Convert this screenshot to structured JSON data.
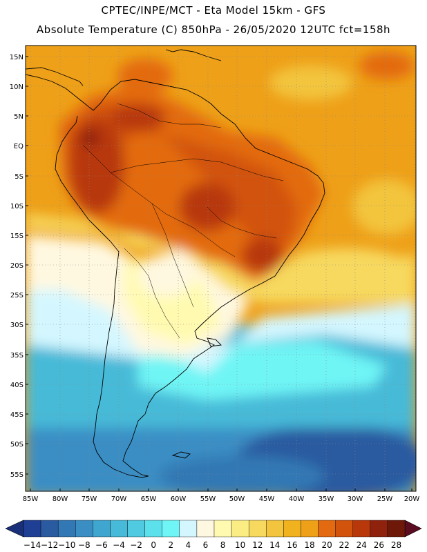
{
  "title": {
    "line1": "CPTEC/INPE/MCT -  Eta Model 15km - GFS",
    "line2": "Absolute Temperature (C) 850hPa - 26/05/2020 12UTC fct=158h"
  },
  "map": {
    "variable": "Absolute Temperature",
    "unit": "C",
    "level": "850hPa",
    "lat_labels": [
      "15N",
      "10N",
      "5N",
      "EQ",
      "5S",
      "10S",
      "15S",
      "20S",
      "25S",
      "30S",
      "35S",
      "40S",
      "45S",
      "50S",
      "55S"
    ],
    "lon_labels": [
      "85W",
      "80W",
      "75W",
      "70W",
      "65W",
      "60W",
      "55W",
      "50W",
      "45W",
      "40W",
      "35W",
      "30W",
      "25W",
      "20W"
    ]
  },
  "colorbar": {
    "labels": [
      "-14",
      "-12",
      "-10",
      "-8",
      "-6",
      "-4",
      "-2",
      "0",
      "2",
      "4",
      "6",
      "8",
      "10",
      "12",
      "14",
      "16",
      "18",
      "20",
      "22",
      "24",
      "26",
      "28"
    ],
    "colors": [
      "#1f3f94",
      "#2a5aa0",
      "#3178b4",
      "#3a8ec4",
      "#3fa6cf",
      "#46bad8",
      "#4fcae0",
      "#5ce0ec",
      "#6ff5f5",
      "#d4f7ff",
      "#fff8e0",
      "#fffab0",
      "#fbec83",
      "#f7d95f",
      "#f3c53e",
      "#f0b21f",
      "#eea018",
      "#e36a10",
      "#d2530c",
      "#b8380c",
      "#8f220c",
      "#6e180a"
    ],
    "low_end_color": "#1a2f7a",
    "high_end_color": "#5a0c20"
  }
}
